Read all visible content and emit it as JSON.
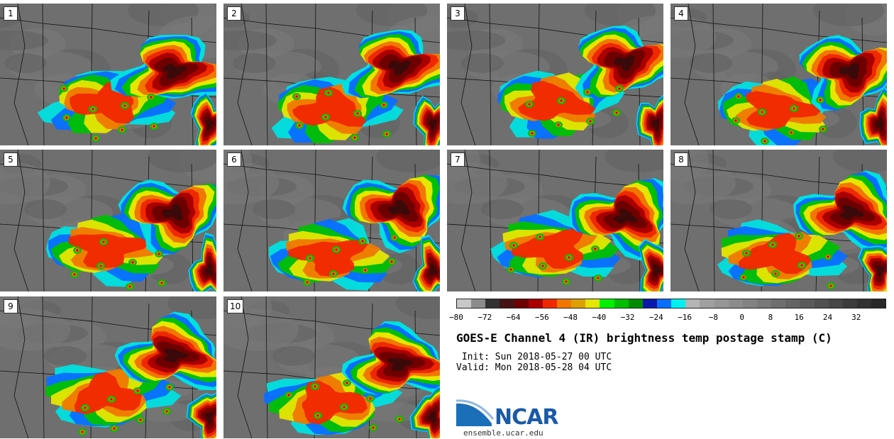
{
  "panels": [
    {
      "label": "1"
    },
    {
      "label": "2"
    },
    {
      "label": "3"
    },
    {
      "label": "4"
    },
    {
      "label": "5"
    },
    {
      "label": "6"
    },
    {
      "label": "7"
    },
    {
      "label": "8"
    },
    {
      "label": "9"
    },
    {
      "label": "10"
    }
  ],
  "colorbar": {
    "colors": [
      "#c8c8c8",
      "#8c8c8c",
      "#323232",
      "#461414",
      "#6e0000",
      "#aa0000",
      "#f02800",
      "#f07800",
      "#dca000",
      "#e6e600",
      "#00f000",
      "#00be00",
      "#008c00",
      "#0a19aa",
      "#0a6eff",
      "#00f0f0",
      "#b4b4b4",
      "#a0a0a0",
      "#969696",
      "#8c8c8c",
      "#828282",
      "#787878",
      "#6e6e6e",
      "#646464",
      "#5a5a5a",
      "#505050",
      "#464646",
      "#3c3c3c",
      "#323232",
      "#282828"
    ],
    "ticks": [
      "−80",
      "−72",
      "−64",
      "−56",
      "−48",
      "−40",
      "−32",
      "−24",
      "−16",
      "−8",
      "0",
      "8",
      "16",
      "24",
      "32"
    ],
    "range": [
      -80,
      40
    ]
  },
  "title": "GOES-E Channel 4 (IR) brightness temp postage stamp (C)",
  "init_line": " Init: Sun 2018-05-27 00 UTC",
  "valid_line": "Valid: Mon 2018-05-28 04 UTC",
  "logo": {
    "name": "NCAR",
    "url": "ensemble.ucar.edu"
  }
}
